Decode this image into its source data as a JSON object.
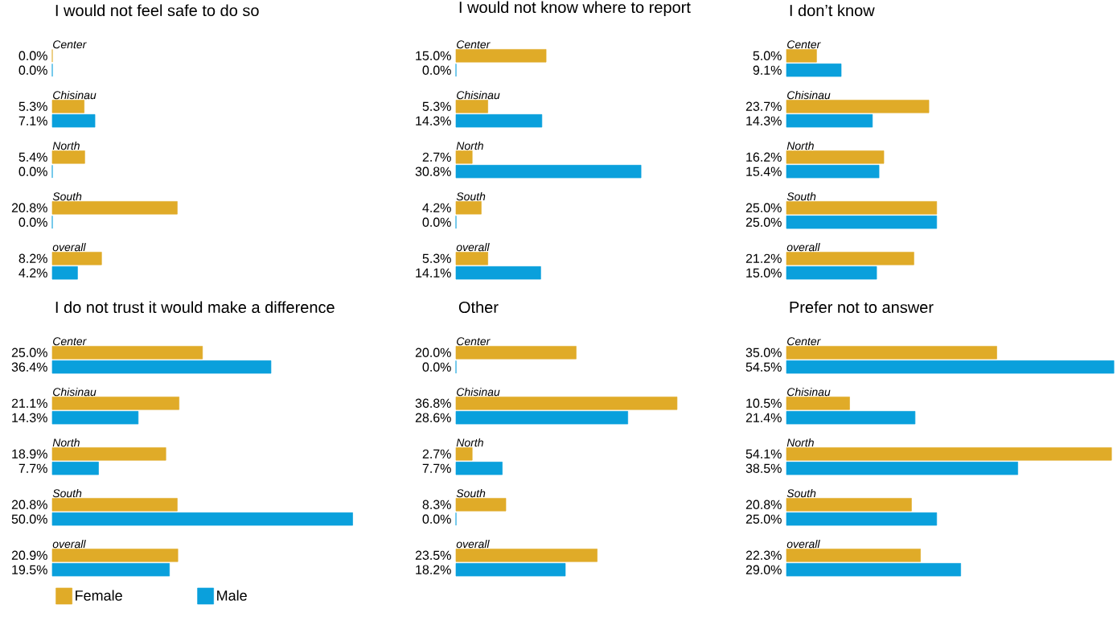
{
  "chart_data": [
    {
      "type": "bar",
      "orientation": "horizontal",
      "title": "I would not feel safe to do so",
      "categories": [
        "Center",
        "Chisinau",
        "North",
        "South",
        "overall"
      ],
      "tick_labels": false,
      "series": [
        {
          "color": "#e0ab28",
          "values": [
            0.0,
            5.3,
            5.4,
            20.8,
            8.2
          ],
          "value_labels": [
            "0.0%",
            "5.3%",
            "5.4%",
            "20.8%",
            "8.2%"
          ]
        },
        {
          "color": "#0aa0dc",
          "values": [
            0.0,
            7.1,
            0.0,
            0.0,
            4.2
          ],
          "value_labels": [
            "0.0%",
            "7.1%",
            "0.0%",
            "0.0%",
            "4.2%"
          ]
        }
      ]
    },
    {
      "type": "bar",
      "orientation": "horizontal",
      "title": "I would not know where to report",
      "categories": [
        "Center",
        "Chisinau",
        "North",
        "South",
        "overall"
      ],
      "tick_labels": false,
      "series": [
        {
          "color": "#e0ab28",
          "values": [
            15.0,
            5.3,
            2.7,
            4.2,
            5.3
          ],
          "value_labels": [
            "15.0%",
            "5.3%",
            "2.7%",
            "4.2%",
            "5.3%"
          ]
        },
        {
          "color": "#0aa0dc",
          "values": [
            0.0,
            14.3,
            30.8,
            0.0,
            14.1
          ],
          "value_labels": [
            "0.0%",
            "14.3%",
            "30.8%",
            "0.0%",
            "14.1%"
          ]
        }
      ]
    },
    {
      "type": "bar",
      "orientation": "horizontal",
      "title": "I don’t know",
      "categories": [
        "Center",
        "Chisinau",
        "North",
        "South",
        "overall"
      ],
      "tick_labels": false,
      "series": [
        {
          "color": "#e0ab28",
          "values": [
            5.0,
            23.7,
            16.2,
            25.0,
            21.2
          ],
          "value_labels": [
            "5.0%",
            "23.7%",
            "16.2%",
            "25.0%",
            "21.2%"
          ]
        },
        {
          "color": "#0aa0dc",
          "values": [
            9.1,
            14.3,
            15.4,
            25.0,
            15.0
          ],
          "value_labels": [
            "9.1%",
            "14.3%",
            "15.4%",
            "25.0%",
            "15.0%"
          ]
        }
      ]
    },
    {
      "type": "bar",
      "orientation": "horizontal",
      "title": "I do not trust it would make a difference",
      "categories": [
        "Center",
        "Chisinau",
        "North",
        "South",
        "overall"
      ],
      "tick_labels": false,
      "legend": "bottom",
      "series": [
        {
          "name": "Female",
          "color": "#e0ab28",
          "values": [
            25.0,
            21.1,
            18.9,
            20.8,
            20.9
          ],
          "value_labels": [
            "25.0%",
            "21.1%",
            "18.9%",
            "20.8%",
            "20.9%"
          ]
        },
        {
          "name": "Male",
          "color": "#0aa0dc",
          "values": [
            36.4,
            14.3,
            7.7,
            50.0,
            19.5
          ],
          "value_labels": [
            "36.4%",
            "14.3%",
            "7.7%",
            "50.0%",
            "19.5%"
          ]
        }
      ]
    },
    {
      "type": "bar",
      "orientation": "horizontal",
      "title": "Other",
      "categories": [
        "Center",
        "Chisinau",
        "North",
        "South",
        "overall"
      ],
      "tick_labels": false,
      "series": [
        {
          "color": "#e0ab28",
          "values": [
            20.0,
            36.8,
            2.7,
            8.3,
            23.5
          ],
          "value_labels": [
            "20.0%",
            "36.8%",
            "2.7%",
            "8.3%",
            "23.5%"
          ]
        },
        {
          "color": "#0aa0dc",
          "values": [
            0.0,
            28.6,
            7.7,
            0.0,
            18.2
          ],
          "value_labels": [
            "0.0%",
            "28.6%",
            "7.7%",
            "0.0%",
            "18.2%"
          ]
        }
      ]
    },
    {
      "type": "bar",
      "orientation": "horizontal",
      "title": "Prefer not to answer",
      "categories": [
        "Center",
        "Chisinau",
        "North",
        "South",
        "overall"
      ],
      "tick_labels": false,
      "series": [
        {
          "color": "#e0ab28",
          "values": [
            35.0,
            10.5,
            54.1,
            20.8,
            22.3
          ],
          "value_labels": [
            "35.0%",
            "10.5%",
            "54.1%",
            "20.8%",
            "22.3%"
          ]
        },
        {
          "color": "#0aa0dc",
          "values": [
            54.5,
            21.4,
            38.5,
            25.0,
            29.0
          ],
          "value_labels": [
            "54.5%",
            "21.4%",
            "38.5%",
            "25.0%",
            "29.0%"
          ]
        }
      ]
    }
  ]
}
